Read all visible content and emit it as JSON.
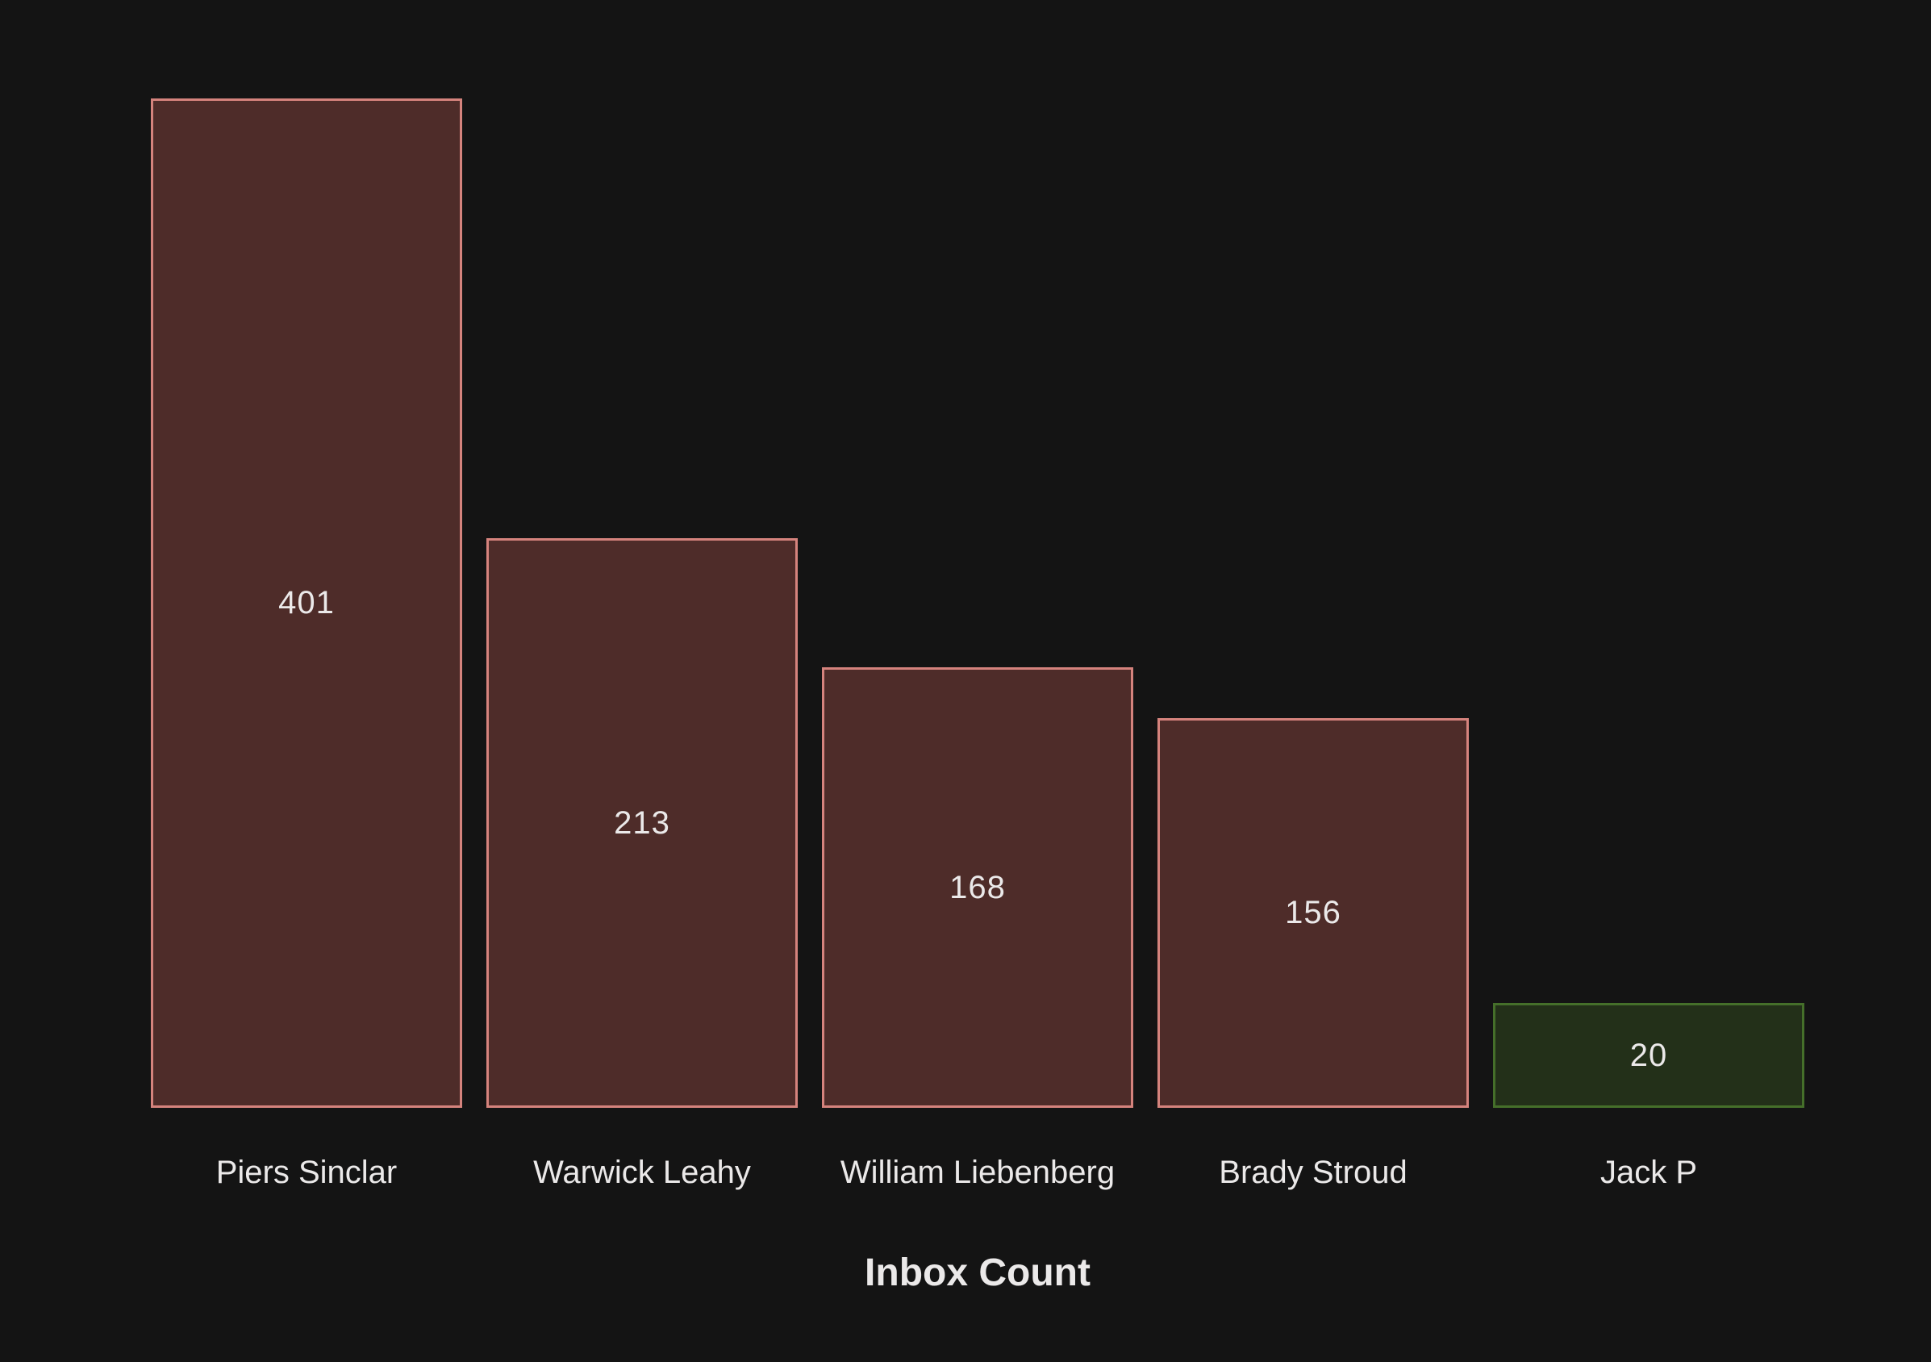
{
  "chart_data": {
    "type": "bar",
    "title": "Inbox Count",
    "categories": [
      "Piers Sinclar",
      "Warwick Leahy",
      "William Liebenberg",
      "Brady Stroud",
      "Jack P"
    ],
    "values": [
      401,
      213,
      168,
      156,
      20
    ],
    "highlight_index": 4,
    "value_label_position": "center-inside",
    "xlabel": "",
    "ylabel": "",
    "axes_visible": false,
    "grid": false,
    "legend": "none"
  },
  "colors": {
    "background": "#141414",
    "text": "#ebe9e9",
    "bar_fill": "#4e2c29",
    "bar_border": "#d5837d",
    "highlight_fill": "#233019",
    "highlight_border": "#456f2a"
  }
}
